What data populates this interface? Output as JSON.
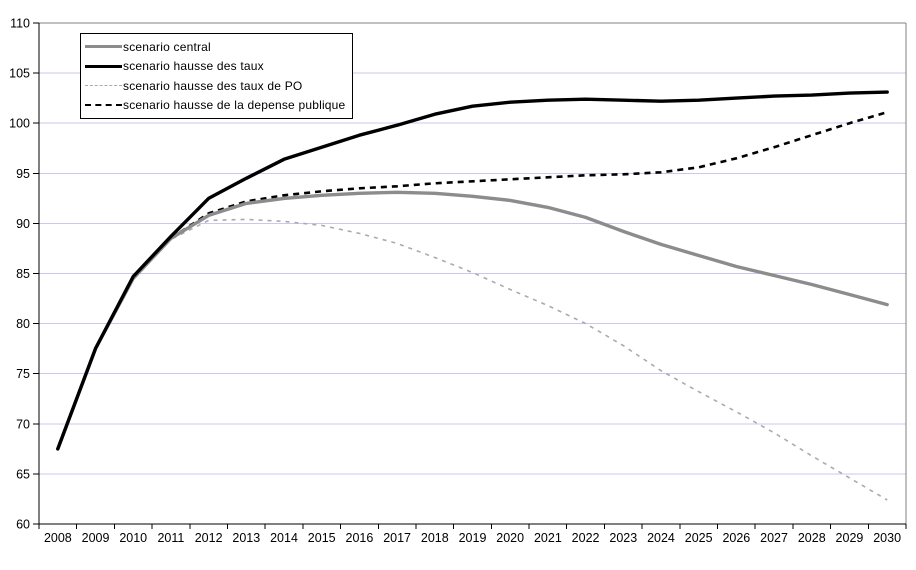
{
  "chart_data": {
    "type": "line",
    "title": "",
    "xlabel": "",
    "ylabel": "",
    "background": "#ffffff",
    "grid": true,
    "grid_color": "#c9c9ec",
    "plot_border_color": "#808080",
    "axis_color": "#000000",
    "legend_position": "top-left",
    "x_categories": [
      "2008",
      "2009",
      "2010",
      "2011",
      "2012",
      "2013",
      "2014",
      "2015",
      "2016",
      "2017",
      "2018",
      "2019",
      "2020",
      "2021",
      "2022",
      "2023",
      "2024",
      "2025",
      "2026",
      "2027",
      "2028",
      "2029",
      "2030"
    ],
    "y_axis": {
      "min": 60,
      "max": 110,
      "step": 5,
      "tick_labels": [
        "60",
        "65",
        "70",
        "75",
        "80",
        "85",
        "90",
        "95",
        "100",
        "105",
        "110"
      ]
    },
    "series": [
      {
        "name": "scenario central",
        "color": "#8c8c8c",
        "style": "solid",
        "width": 3.4,
        "values": [
          67.5,
          77.5,
          84.5,
          88.5,
          90.8,
          92.0,
          92.5,
          92.8,
          93.0,
          93.1,
          93.0,
          92.7,
          92.3,
          91.6,
          90.6,
          89.2,
          87.9,
          86.8,
          85.7,
          84.8,
          83.9,
          82.9,
          81.9
        ]
      },
      {
        "name": "scenario hausse des taux",
        "color": "#000000",
        "style": "solid",
        "width": 3.4,
        "values": [
          67.5,
          77.5,
          84.7,
          88.7,
          92.5,
          94.5,
          96.4,
          97.6,
          98.8,
          99.8,
          100.9,
          101.7,
          102.1,
          102.3,
          102.4,
          102.3,
          102.2,
          102.3,
          102.5,
          102.7,
          102.8,
          103.0,
          103.1
        ]
      },
      {
        "name": "scenario hausse des taux de PO",
        "color": "#aaaab2",
        "style": "dashed",
        "width": 1.6,
        "values": [
          67.5,
          77.4,
          84.4,
          88.4,
          90.3,
          90.4,
          90.2,
          89.8,
          89.0,
          88.0,
          86.6,
          85.1,
          83.4,
          81.8,
          80.0,
          77.8,
          75.3,
          73.2,
          71.2,
          69.1,
          66.8,
          64.6,
          62.4
        ]
      },
      {
        "name": "scenario hausse de la depense publique",
        "color": "#000000",
        "style": "dashed-bold",
        "width": 2.6,
        "values": [
          67.5,
          77.5,
          84.5,
          88.5,
          91.0,
          92.2,
          92.8,
          93.2,
          93.5,
          93.7,
          94.0,
          94.2,
          94.4,
          94.6,
          94.8,
          94.9,
          95.1,
          95.6,
          96.5,
          97.6,
          98.8,
          100.0,
          101.1
        ]
      }
    ]
  }
}
